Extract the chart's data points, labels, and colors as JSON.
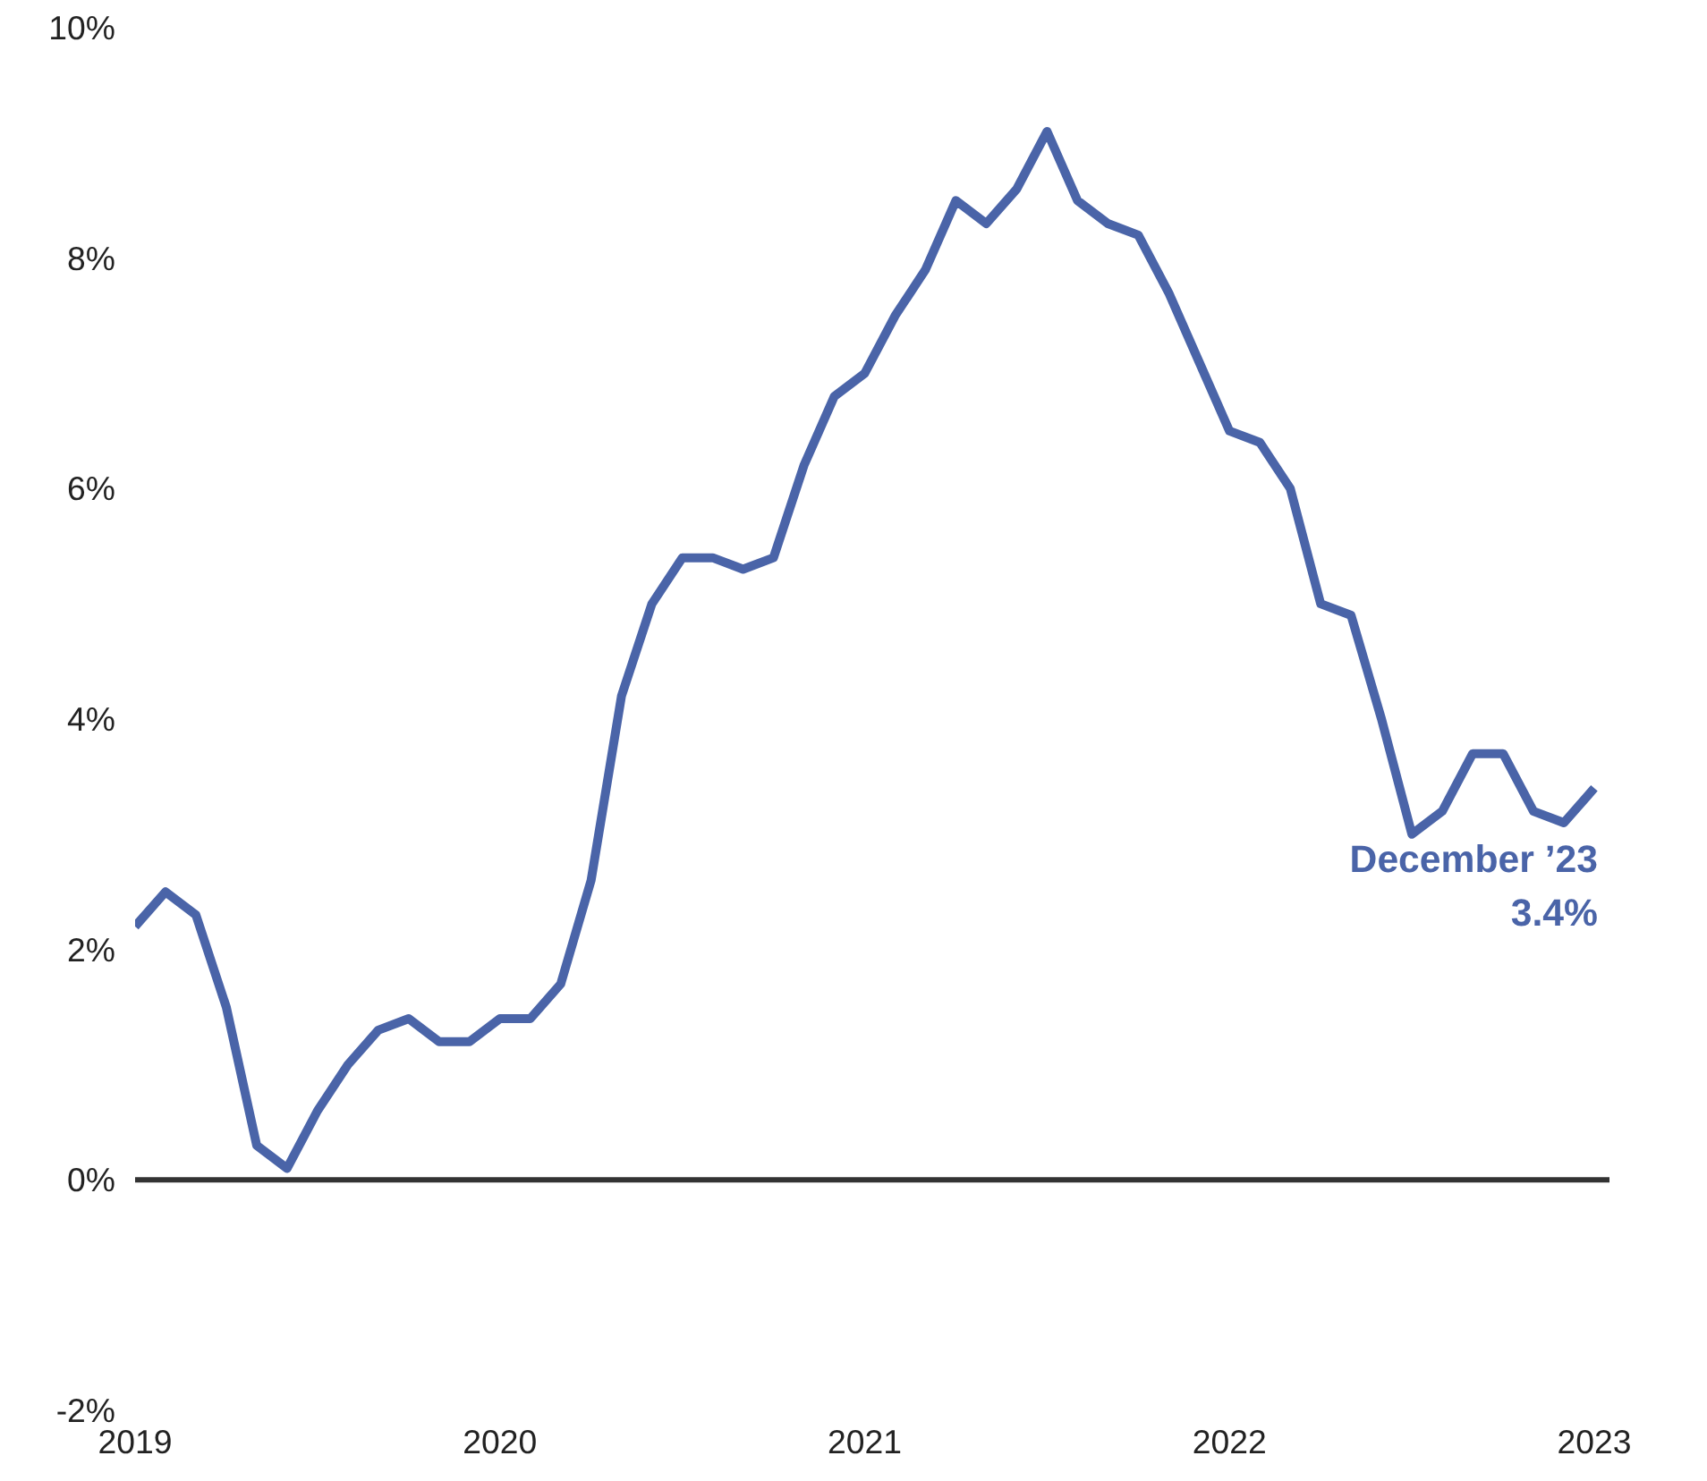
{
  "chart_data": {
    "type": "line",
    "categories": [
      "2019",
      null,
      null,
      null,
      null,
      null,
      null,
      null,
      null,
      null,
      null,
      null,
      "2020",
      null,
      null,
      null,
      null,
      null,
      null,
      null,
      null,
      null,
      null,
      null,
      "2021",
      null,
      null,
      null,
      null,
      null,
      null,
      null,
      null,
      null,
      null,
      null,
      "2022",
      null,
      null,
      null,
      null,
      null,
      null,
      null,
      null,
      null,
      null,
      null,
      "2023"
    ],
    "series": [
      {
        "color": "#4a64a8",
        "values": [
          2.2,
          2.5,
          2.3,
          1.5,
          0.3,
          0.1,
          0.6,
          1.0,
          1.3,
          1.4,
          1.2,
          1.2,
          1.4,
          1.4,
          1.7,
          2.6,
          4.2,
          5.0,
          5.4,
          5.4,
          5.3,
          5.4,
          6.2,
          6.8,
          7.0,
          7.5,
          7.9,
          8.5,
          8.3,
          8.6,
          9.1,
          8.5,
          8.3,
          8.2,
          7.7,
          7.1,
          6.5,
          6.4,
          6.0,
          5.0,
          4.9,
          4.0,
          3.0,
          3.2,
          3.7,
          3.7,
          3.2,
          3.1,
          3.4
        ]
      }
    ],
    "ylim": [
      -2,
      10
    ],
    "yticks": [
      {
        "value": -2,
        "label": "-2%"
      },
      {
        "value": 0,
        "label": "0%"
      },
      {
        "value": 2,
        "label": "2%"
      },
      {
        "value": 4,
        "label": "4%"
      },
      {
        "value": 6,
        "label": "6%"
      },
      {
        "value": 8,
        "label": "8%"
      },
      {
        "value": 10,
        "label": "10%"
      }
    ],
    "ref_lines": [
      {
        "axis": "y",
        "value": 0,
        "color": "#333333"
      }
    ],
    "annotations": [
      {
        "text": "December ’23",
        "x": "2023",
        "y": 3.4
      },
      {
        "text": "3.4%",
        "x": "2023",
        "y": 3.4
      }
    ],
    "grid": false,
    "line_style": "solid",
    "marker": "none"
  }
}
